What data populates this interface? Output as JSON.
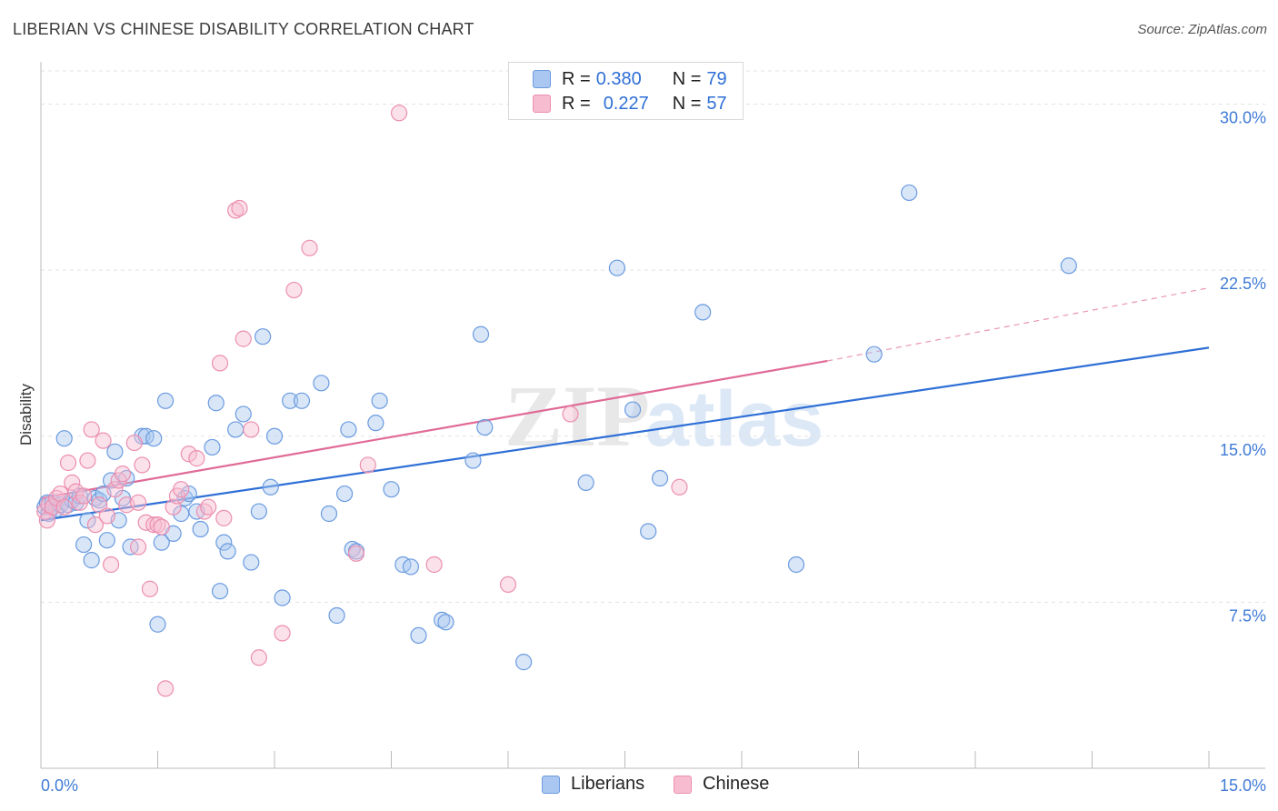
{
  "header": {
    "title": "LIBERIAN VS CHINESE DISABILITY CORRELATION CHART",
    "source": "Source: ZipAtlas.com"
  },
  "watermark": {
    "left": "ZIP",
    "right": "atlas"
  },
  "legend": {
    "rows": [
      {
        "r_label": "R =",
        "r_value": "0.380",
        "n_label": "N =",
        "n_value": "79"
      },
      {
        "r_label": "R =",
        "r_value": "0.227",
        "n_label": "N =",
        "n_value": "57"
      }
    ]
  },
  "bottom_legend": {
    "series0": "Liberians",
    "series1": "Chinese"
  },
  "colors": {
    "liberians_fill": "#a9c7f0",
    "liberians_stroke": "#6b9be0",
    "liberians_line": "#2f6fd6",
    "chinese_fill": "#f7bcd0",
    "chinese_stroke": "#ec8fb0",
    "chinese_line": "#e06a96",
    "axis_label": "#3f7bd6",
    "grid": "#e3e3e3"
  },
  "chart_data": {
    "type": "scatter",
    "title": "LIBERIAN VS CHINESE DISABILITY CORRELATION CHART",
    "xlabel": "",
    "ylabel": "Disability",
    "xlim": [
      0,
      15
    ],
    "ylim": [
      0,
      31.5
    ],
    "x_tick_labels": [
      "0.0%",
      "15.0%"
    ],
    "y_ticks": [
      7.5,
      15.0,
      22.5,
      30.0
    ],
    "y_tick_labels": [
      "7.5%",
      "15.0%",
      "22.5%",
      "30.0%"
    ],
    "grid": true,
    "legend_position": "top-center",
    "series": [
      {
        "name": "Liberians",
        "r": 0.38,
        "n": 79,
        "trend": {
          "x": [
            0,
            15
          ],
          "y": [
            11.2,
            19.0
          ]
        },
        "points": [
          [
            0.05,
            11.8
          ],
          [
            0.08,
            12.0
          ],
          [
            0.1,
            11.5
          ],
          [
            0.15,
            12.0
          ],
          [
            0.2,
            11.7
          ],
          [
            0.25,
            11.9
          ],
          [
            0.3,
            14.9
          ],
          [
            0.35,
            11.9
          ],
          [
            0.4,
            12.1
          ],
          [
            0.45,
            12.0
          ],
          [
            0.5,
            12.3
          ],
          [
            0.55,
            10.1
          ],
          [
            0.6,
            11.2
          ],
          [
            0.65,
            9.4
          ],
          [
            0.7,
            12.2
          ],
          [
            0.75,
            12.1
          ],
          [
            0.8,
            12.4
          ],
          [
            0.85,
            10.3
          ],
          [
            0.9,
            13.0
          ],
          [
            0.95,
            14.3
          ],
          [
            1.0,
            11.2
          ],
          [
            1.05,
            12.2
          ],
          [
            1.1,
            13.1
          ],
          [
            1.15,
            10.0
          ],
          [
            1.3,
            15.0
          ],
          [
            1.35,
            15.0
          ],
          [
            1.45,
            14.9
          ],
          [
            1.5,
            6.5
          ],
          [
            1.55,
            10.2
          ],
          [
            1.6,
            16.6
          ],
          [
            1.7,
            10.6
          ],
          [
            1.8,
            11.5
          ],
          [
            1.85,
            12.2
          ],
          [
            1.9,
            12.4
          ],
          [
            2.0,
            11.6
          ],
          [
            2.05,
            10.8
          ],
          [
            2.2,
            14.5
          ],
          [
            2.25,
            16.5
          ],
          [
            2.3,
            8.0
          ],
          [
            2.35,
            10.2
          ],
          [
            2.4,
            9.8
          ],
          [
            2.5,
            15.3
          ],
          [
            2.6,
            16.0
          ],
          [
            2.7,
            9.3
          ],
          [
            2.8,
            11.6
          ],
          [
            2.85,
            19.5
          ],
          [
            2.95,
            12.7
          ],
          [
            3.0,
            15.0
          ],
          [
            3.1,
            7.7
          ],
          [
            3.2,
            16.6
          ],
          [
            3.35,
            16.6
          ],
          [
            3.6,
            17.4
          ],
          [
            3.7,
            11.5
          ],
          [
            3.8,
            6.9
          ],
          [
            3.9,
            12.4
          ],
          [
            3.95,
            15.3
          ],
          [
            4.0,
            9.9
          ],
          [
            4.05,
            9.8
          ],
          [
            4.3,
            15.6
          ],
          [
            4.35,
            16.6
          ],
          [
            4.5,
            12.6
          ],
          [
            4.65,
            9.2
          ],
          [
            4.75,
            9.1
          ],
          [
            4.85,
            6.0
          ],
          [
            5.15,
            6.7
          ],
          [
            5.2,
            6.6
          ],
          [
            5.55,
            13.9
          ],
          [
            5.65,
            19.6
          ],
          [
            5.7,
            15.4
          ],
          [
            6.2,
            4.8
          ],
          [
            7.0,
            12.9
          ],
          [
            7.4,
            22.6
          ],
          [
            7.6,
            16.2
          ],
          [
            7.8,
            10.7
          ],
          [
            7.95,
            13.1
          ],
          [
            8.5,
            20.6
          ],
          [
            9.7,
            9.2
          ],
          [
            10.7,
            18.7
          ],
          [
            11.15,
            26.0
          ],
          [
            13.2,
            22.7
          ]
        ]
      },
      {
        "name": "Chinese",
        "r": 0.227,
        "n": 57,
        "trend": {
          "x": [
            0,
            10.1
          ],
          "y": [
            12.2,
            18.4
          ]
        },
        "trend_dashed": {
          "x": [
            10.1,
            15
          ],
          "y": [
            18.4,
            21.7
          ]
        },
        "points": [
          [
            0.05,
            11.6
          ],
          [
            0.08,
            11.2
          ],
          [
            0.1,
            11.9
          ],
          [
            0.15,
            11.8
          ],
          [
            0.2,
            12.2
          ],
          [
            0.25,
            12.4
          ],
          [
            0.3,
            11.8
          ],
          [
            0.35,
            13.8
          ],
          [
            0.4,
            12.9
          ],
          [
            0.45,
            12.5
          ],
          [
            0.5,
            12.0
          ],
          [
            0.55,
            12.3
          ],
          [
            0.6,
            13.9
          ],
          [
            0.65,
            15.3
          ],
          [
            0.7,
            11.0
          ],
          [
            0.75,
            11.9
          ],
          [
            0.8,
            14.8
          ],
          [
            0.85,
            11.4
          ],
          [
            0.9,
            9.2
          ],
          [
            0.95,
            12.6
          ],
          [
            1.0,
            13.0
          ],
          [
            1.05,
            13.3
          ],
          [
            1.1,
            11.9
          ],
          [
            1.2,
            14.7
          ],
          [
            1.25,
            12.0
          ],
          [
            1.3,
            13.7
          ],
          [
            1.35,
            11.1
          ],
          [
            1.4,
            8.1
          ],
          [
            1.45,
            11.0
          ],
          [
            1.5,
            11.0
          ],
          [
            1.55,
            10.9
          ],
          [
            1.6,
            3.6
          ],
          [
            1.7,
            11.8
          ],
          [
            1.75,
            12.3
          ],
          [
            1.8,
            12.6
          ],
          [
            1.9,
            14.2
          ],
          [
            2.0,
            14.0
          ],
          [
            2.1,
            11.6
          ],
          [
            2.15,
            11.8
          ],
          [
            2.3,
            18.3
          ],
          [
            2.35,
            11.3
          ],
          [
            2.5,
            25.2
          ],
          [
            2.55,
            25.3
          ],
          [
            2.6,
            19.4
          ],
          [
            2.7,
            15.3
          ],
          [
            2.8,
            5.0
          ],
          [
            3.1,
            6.1
          ],
          [
            3.25,
            21.6
          ],
          [
            3.45,
            23.5
          ],
          [
            4.05,
            9.7
          ],
          [
            4.2,
            13.7
          ],
          [
            4.6,
            29.6
          ],
          [
            5.05,
            9.2
          ],
          [
            6.0,
            8.3
          ],
          [
            6.8,
            16.0
          ],
          [
            8.2,
            12.7
          ],
          [
            1.25,
            10.0
          ]
        ]
      }
    ]
  }
}
